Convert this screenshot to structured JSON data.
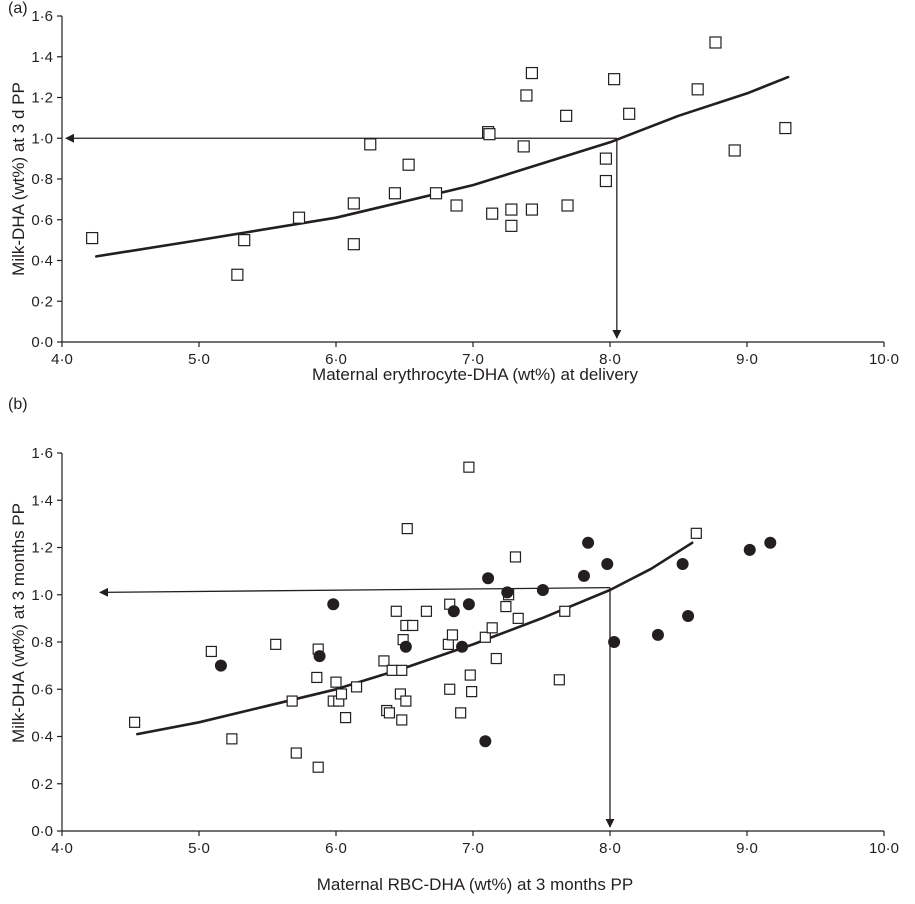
{
  "panels": [
    {
      "label": "(a)",
      "xlabel": "Maternal erythrocyte-DHA (wt%) at delivery",
      "ylabel": "Milk-DHA (wt%) at 3 d PP",
      "xticks": [
        "4·0",
        "5·0",
        "6·0",
        "7·0",
        "8·0",
        "9·0",
        "10·0"
      ],
      "yticks": [
        "0·0",
        "0·2",
        "0·4",
        "0·6",
        "0·8",
        "1·0",
        "1·2",
        "1·4",
        "1·6"
      ]
    },
    {
      "label": "(b)",
      "xlabel": "Maternal RBC-DHA (wt%) at 3 months PP",
      "ylabel": "Milk-DHA (wt%) at 3 months PP",
      "xticks": [
        "4·0",
        "5·0",
        "6·0",
        "7·0",
        "8·0",
        "9·0",
        "10·0"
      ],
      "yticks": [
        "0·0",
        "0·2",
        "0·4",
        "0·6",
        "0·8",
        "1·0",
        "1·2",
        "1·4",
        "1·6"
      ]
    }
  ],
  "chart_data": [
    {
      "type": "scatter",
      "label": "(a)",
      "xlabel": "Maternal erythrocyte-DHA (wt%) at delivery",
      "ylabel": "Milk-DHA (wt%) at 3 d PP",
      "xlim": [
        4.0,
        10.0
      ],
      "ylim": [
        0.0,
        1.6
      ],
      "series": [
        {
          "marker": "open-square",
          "points": [
            [
              4.22,
              0.51
            ],
            [
              5.28,
              0.33
            ],
            [
              5.33,
              0.5
            ],
            [
              5.73,
              0.61
            ],
            [
              6.13,
              0.68
            ],
            [
              6.13,
              0.48
            ],
            [
              6.25,
              0.97
            ],
            [
              6.43,
              0.73
            ],
            [
              6.53,
              0.87
            ],
            [
              6.73,
              0.73
            ],
            [
              6.88,
              0.67
            ],
            [
              7.11,
              1.03
            ],
            [
              7.12,
              1.02
            ],
            [
              7.14,
              0.63
            ],
            [
              7.28,
              0.65
            ],
            [
              7.28,
              0.57
            ],
            [
              7.37,
              0.96
            ],
            [
              7.39,
              1.21
            ],
            [
              7.43,
              1.32
            ],
            [
              7.43,
              0.65
            ],
            [
              7.68,
              1.11
            ],
            [
              7.69,
              0.67
            ],
            [
              7.97,
              0.9
            ],
            [
              7.97,
              0.79
            ],
            [
              8.03,
              1.29
            ],
            [
              8.14,
              1.12
            ],
            [
              8.64,
              1.24
            ],
            [
              8.77,
              1.47
            ],
            [
              8.91,
              0.94
            ],
            [
              9.28,
              1.05
            ]
          ]
        }
      ],
      "fit_curve": [
        [
          4.25,
          0.42
        ],
        [
          5.0,
          0.5
        ],
        [
          6.0,
          0.61
        ],
        [
          7.0,
          0.77
        ],
        [
          8.0,
          0.98
        ],
        [
          8.5,
          1.11
        ],
        [
          9.0,
          1.22
        ],
        [
          9.3,
          1.3
        ]
      ],
      "annotation_arrows": {
        "x_at": 8.05,
        "y_at": 1.0
      }
    },
    {
      "type": "scatter",
      "label": "(b)",
      "xlabel": "Maternal RBC-DHA (wt%) at 3 months PP",
      "ylabel": "Milk-DHA (wt%) at 3 months PP",
      "xlim": [
        4.0,
        10.0
      ],
      "ylim": [
        0.0,
        1.6
      ],
      "series": [
        {
          "marker": "open-square",
          "points": [
            [
              4.53,
              0.46
            ],
            [
              5.09,
              0.76
            ],
            [
              5.24,
              0.39
            ],
            [
              5.56,
              0.79
            ],
            [
              5.68,
              0.55
            ],
            [
              5.71,
              0.33
            ],
            [
              5.86,
              0.65
            ],
            [
              5.87,
              0.77
            ],
            [
              5.87,
              0.27
            ],
            [
              5.98,
              0.55
            ],
            [
              6.0,
              0.63
            ],
            [
              6.02,
              0.55
            ],
            [
              6.04,
              0.58
            ],
            [
              6.07,
              0.48
            ],
            [
              6.15,
              0.61
            ],
            [
              6.35,
              0.72
            ],
            [
              6.37,
              0.51
            ],
            [
              6.39,
              0.5
            ],
            [
              6.41,
              0.68
            ],
            [
              6.44,
              0.93
            ],
            [
              6.47,
              0.58
            ],
            [
              6.48,
              0.47
            ],
            [
              6.48,
              0.68
            ],
            [
              6.49,
              0.81
            ],
            [
              6.51,
              0.87
            ],
            [
              6.51,
              0.55
            ],
            [
              6.52,
              1.28
            ],
            [
              6.56,
              0.87
            ],
            [
              6.66,
              0.93
            ],
            [
              6.82,
              0.79
            ],
            [
              6.83,
              0.96
            ],
            [
              6.83,
              0.6
            ],
            [
              6.85,
              0.83
            ],
            [
              6.91,
              0.5
            ],
            [
              6.97,
              1.54
            ],
            [
              6.98,
              0.66
            ],
            [
              6.99,
              0.59
            ],
            [
              7.09,
              0.82
            ],
            [
              7.14,
              0.86
            ],
            [
              7.17,
              0.73
            ],
            [
              7.24,
              0.95
            ],
            [
              7.26,
              1.0
            ],
            [
              7.31,
              1.16
            ],
            [
              7.33,
              0.9
            ],
            [
              7.63,
              0.64
            ],
            [
              7.67,
              0.93
            ],
            [
              8.63,
              1.26
            ]
          ]
        },
        {
          "marker": "filled-circle",
          "points": [
            [
              5.16,
              0.7
            ],
            [
              5.88,
              0.74
            ],
            [
              5.98,
              0.96
            ],
            [
              6.51,
              0.78
            ],
            [
              6.86,
              0.93
            ],
            [
              6.92,
              0.78
            ],
            [
              6.97,
              0.96
            ],
            [
              7.09,
              0.38
            ],
            [
              7.11,
              1.07
            ],
            [
              7.25,
              1.01
            ],
            [
              7.51,
              1.02
            ],
            [
              7.81,
              1.08
            ],
            [
              7.84,
              1.22
            ],
            [
              7.98,
              1.13
            ],
            [
              8.03,
              0.8
            ],
            [
              8.35,
              0.83
            ],
            [
              8.53,
              1.13
            ],
            [
              8.57,
              0.91
            ],
            [
              9.02,
              1.19
            ],
            [
              9.17,
              1.22
            ]
          ]
        }
      ],
      "fit_curve": [
        [
          4.55,
          0.41
        ],
        [
          5.0,
          0.46
        ],
        [
          5.5,
          0.53
        ],
        [
          6.0,
          0.6
        ],
        [
          6.5,
          0.69
        ],
        [
          7.0,
          0.79
        ],
        [
          7.5,
          0.9
        ],
        [
          8.0,
          1.02
        ],
        [
          8.3,
          1.11
        ],
        [
          8.6,
          1.22
        ]
      ],
      "annotation_arrows": {
        "x_at": 8.0,
        "y_at_start": 1.01,
        "y_at_end": 1.03
      }
    }
  ]
}
